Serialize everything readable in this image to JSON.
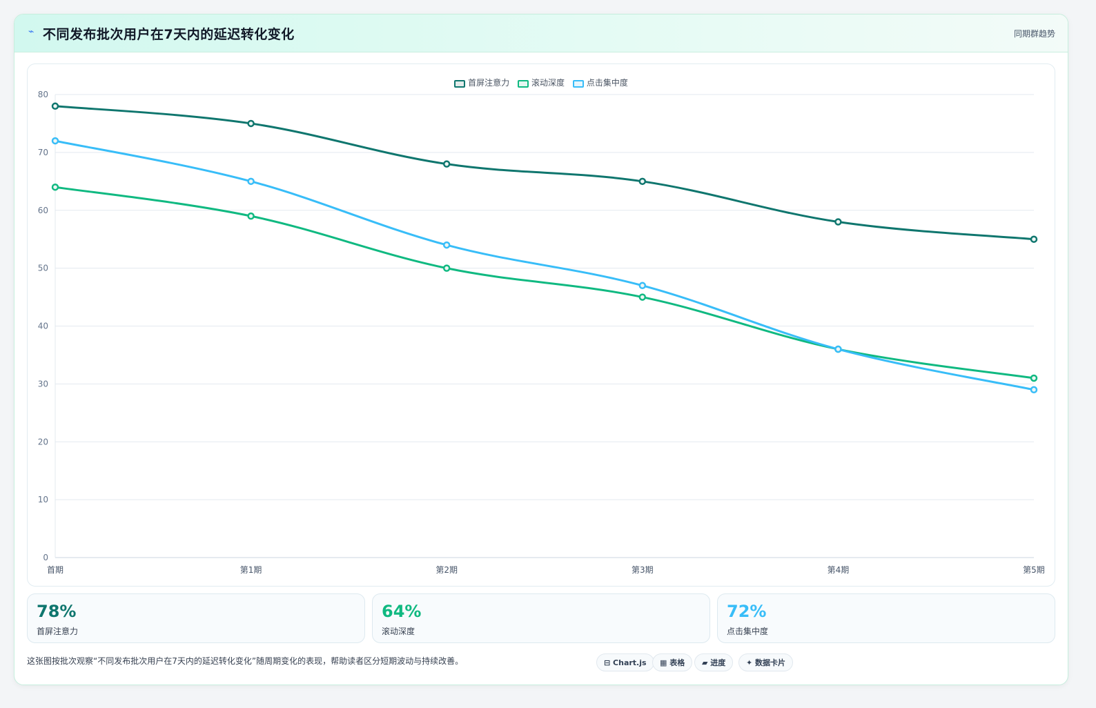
{
  "header": {
    "icon": "bolt-icon",
    "title": "不同发布批次用户在7天内的延迟转化变化",
    "tag": "同期群趋势"
  },
  "chart_data": {
    "type": "line",
    "categories": [
      "首期",
      "第1期",
      "第2期",
      "第3期",
      "第4期",
      "第5期"
    ],
    "series": [
      {
        "name": "首屏注意力",
        "color": "#0f766e",
        "values": [
          78,
          75,
          68,
          65,
          58,
          55
        ]
      },
      {
        "name": "滚动深度",
        "color": "#10b981",
        "values": [
          64,
          59,
          50,
          45,
          36,
          31
        ]
      },
      {
        "name": "点击集中度",
        "color": "#38bdf8",
        "values": [
          72,
          65,
          54,
          47,
          36,
          29
        ]
      }
    ],
    "ylim": [
      0,
      80
    ],
    "yticks": [
      0,
      10,
      20,
      30,
      40,
      50,
      60,
      70,
      80
    ],
    "grid": true,
    "legend": "top-center"
  },
  "stats": [
    {
      "value": "78%",
      "label": "首屏注意力",
      "color": "#0f766e"
    },
    {
      "value": "64%",
      "label": "滚动深度",
      "color": "#10b981"
    },
    {
      "value": "72%",
      "label": "点击集中度",
      "color": "#38bdf8"
    }
  ],
  "footnote": "这张图按批次观察“不同发布批次用户在7天内的延迟转化变化”随周期变化的表现，帮助读者区分短期波动与持续改善。",
  "chips": [
    {
      "label": "⊟ Chart.js"
    },
    {
      "label": "▦ 表格"
    },
    {
      "label": "▰ 进度"
    },
    {
      "label": "✦ 数据卡片"
    }
  ]
}
